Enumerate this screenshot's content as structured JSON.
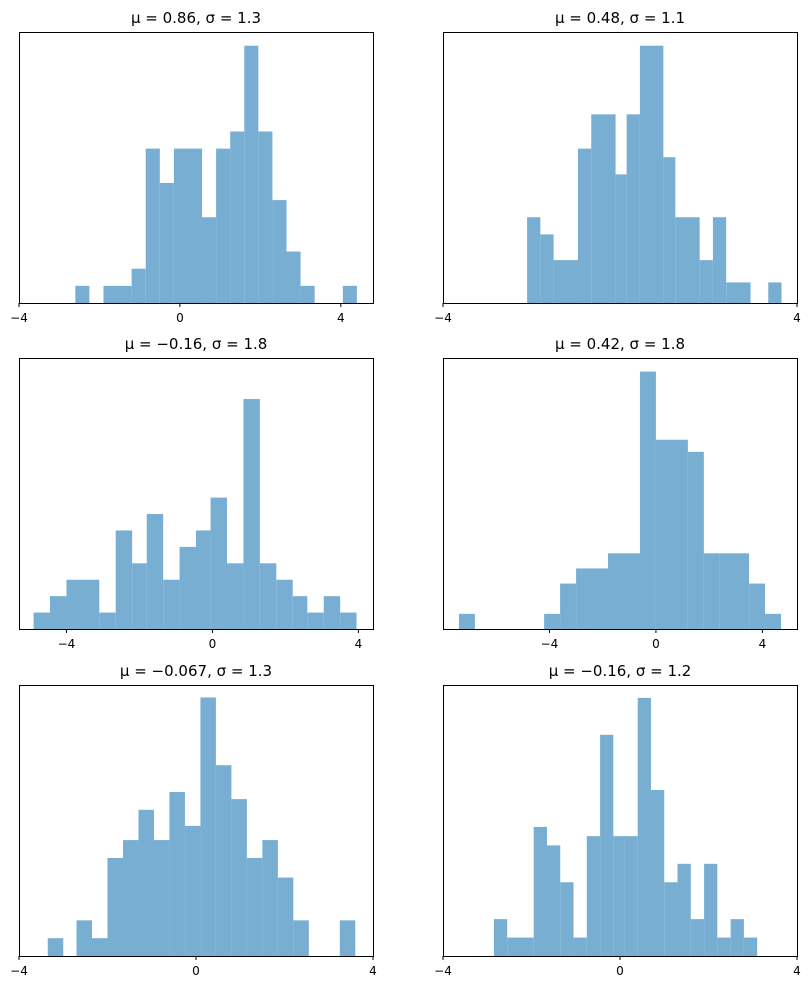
{
  "chart_data": [
    {
      "type": "bar",
      "subtype": "histogram",
      "title": "μ = 0.86,    σ = 1.3",
      "bar_color": "#77aed2",
      "xlim": [
        -4,
        4.8
      ],
      "xticks": [
        -4,
        0,
        4
      ],
      "xtick_labels": [
        "−4",
        "0",
        "4"
      ],
      "yticks_visible": false,
      "bins": [
        {
          "x0": -2.6,
          "x1": -2.25,
          "count": 1
        },
        {
          "x0": -1.9,
          "x1": -1.2,
          "count": 1
        },
        {
          "x0": -1.2,
          "x1": -0.85,
          "count": 2
        },
        {
          "x0": -0.85,
          "x1": -0.5,
          "count": 9
        },
        {
          "x0": -0.5,
          "x1": -0.15,
          "count": 7
        },
        {
          "x0": -0.15,
          "x1": 0.55,
          "count": 9
        },
        {
          "x0": 0.55,
          "x1": 0.9,
          "count": 5
        },
        {
          "x0": 0.9,
          "x1": 1.25,
          "count": 9
        },
        {
          "x0": 1.25,
          "x1": 1.6,
          "count": 10
        },
        {
          "x0": 1.6,
          "x1": 1.95,
          "count": 15
        },
        {
          "x0": 1.95,
          "x1": 2.3,
          "count": 10
        },
        {
          "x0": 2.3,
          "x1": 2.65,
          "count": 6
        },
        {
          "x0": 2.65,
          "x1": 3.0,
          "count": 3
        },
        {
          "x0": 3.0,
          "x1": 3.35,
          "count": 1
        },
        {
          "x0": 4.05,
          "x1": 4.4,
          "count": 1
        }
      ],
      "ylim": [
        0,
        15.8
      ]
    },
    {
      "type": "bar",
      "subtype": "histogram",
      "title": "μ = 0.48,    σ = 1.1",
      "bar_color": "#77aed2",
      "xlim": [
        -4,
        4
      ],
      "xticks": [
        -4,
        4
      ],
      "xtick_labels": [
        "−4",
        "4"
      ],
      "yticks_visible": false,
      "bins": [
        {
          "x0": -2.1,
          "x1": -1.8,
          "count": 5
        },
        {
          "x0": -1.8,
          "x1": -1.5,
          "count": 4
        },
        {
          "x0": -1.5,
          "x1": -0.95,
          "count": 2.5
        },
        {
          "x0": -0.95,
          "x1": -0.65,
          "count": 9
        },
        {
          "x0": -0.65,
          "x1": -0.1,
          "count": 11
        },
        {
          "x0": -0.1,
          "x1": 0.15,
          "count": 7.5
        },
        {
          "x0": 0.15,
          "x1": 0.45,
          "count": 11
        },
        {
          "x0": 0.45,
          "x1": 0.98,
          "count": 15
        },
        {
          "x0": 0.98,
          "x1": 1.25,
          "count": 8.5
        },
        {
          "x0": 1.25,
          "x1": 1.8,
          "count": 5
        },
        {
          "x0": 1.8,
          "x1": 2.1,
          "count": 2.5
        },
        {
          "x0": 2.1,
          "x1": 2.4,
          "count": 5
        },
        {
          "x0": 2.4,
          "x1": 2.95,
          "count": 1.2
        },
        {
          "x0": 3.35,
          "x1": 3.65,
          "count": 1.2
        }
      ],
      "ylim": [
        0,
        15.8
      ]
    },
    {
      "type": "bar",
      "subtype": "histogram",
      "title": "μ = −0.16,    σ = 1.8",
      "bar_color": "#77aed2",
      "xlim": [
        -5.3,
        4.4
      ],
      "xticks": [
        -4,
        0,
        4
      ],
      "xtick_labels": [
        "−4",
        "0",
        "4"
      ],
      "yticks_visible": false,
      "bins": [
        {
          "x0": -4.9,
          "x1": -4.45,
          "count": 1
        },
        {
          "x0": -4.45,
          "x1": -4.0,
          "count": 2
        },
        {
          "x0": -4.0,
          "x1": -3.1,
          "count": 3
        },
        {
          "x0": -3.1,
          "x1": -2.65,
          "count": 1
        },
        {
          "x0": -2.65,
          "x1": -2.2,
          "count": 6
        },
        {
          "x0": -2.2,
          "x1": -1.8,
          "count": 4
        },
        {
          "x0": -1.8,
          "x1": -1.35,
          "count": 7
        },
        {
          "x0": -1.35,
          "x1": -0.9,
          "count": 3
        },
        {
          "x0": -0.9,
          "x1": -0.45,
          "count": 5
        },
        {
          "x0": -0.45,
          "x1": -0.05,
          "count": 6
        },
        {
          "x0": -0.05,
          "x1": 0.4,
          "count": 8
        },
        {
          "x0": 0.4,
          "x1": 0.85,
          "count": 4
        },
        {
          "x0": 0.85,
          "x1": 1.3,
          "count": 14
        },
        {
          "x0": 1.3,
          "x1": 1.75,
          "count": 4
        },
        {
          "x0": 1.75,
          "x1": 2.2,
          "count": 3
        },
        {
          "x0": 2.2,
          "x1": 2.6,
          "count": 2
        },
        {
          "x0": 2.6,
          "x1": 3.05,
          "count": 1
        },
        {
          "x0": 3.05,
          "x1": 3.5,
          "count": 2
        },
        {
          "x0": 3.5,
          "x1": 3.95,
          "count": 1
        }
      ],
      "ylim": [
        0,
        16.5
      ]
    },
    {
      "type": "bar",
      "subtype": "histogram",
      "title": "μ = 0.42,    σ = 1.8",
      "bar_color": "#77aed2",
      "xlim": [
        -8.0,
        5.3
      ],
      "xticks": [
        -4,
        0,
        4
      ],
      "xtick_labels": [
        "−4",
        "0",
        "4"
      ],
      "yticks_visible": false,
      "bins": [
        {
          "x0": -7.4,
          "x1": -6.8,
          "count": 1
        },
        {
          "x0": -4.2,
          "x1": -3.6,
          "count": 1
        },
        {
          "x0": -3.6,
          "x1": -3.0,
          "count": 3
        },
        {
          "x0": -3.0,
          "x1": -1.8,
          "count": 4
        },
        {
          "x0": -1.8,
          "x1": -0.6,
          "count": 5
        },
        {
          "x0": -0.6,
          "x1": 0.0,
          "count": 17
        },
        {
          "x0": 0.0,
          "x1": 1.2,
          "count": 12.5
        },
        {
          "x0": 1.2,
          "x1": 1.8,
          "count": 11.7
        },
        {
          "x0": 1.8,
          "x1": 2.4,
          "count": 5
        },
        {
          "x0": 2.4,
          "x1": 3.5,
          "count": 5
        },
        {
          "x0": 3.5,
          "x1": 4.1,
          "count": 3
        },
        {
          "x0": 4.1,
          "x1": 4.7,
          "count": 1
        }
      ],
      "ylim": [
        0,
        17.9
      ]
    },
    {
      "type": "bar",
      "subtype": "histogram",
      "title": "μ = −0.067,    σ = 1.3",
      "bar_color": "#77aed2",
      "xlim": [
        -4,
        4
      ],
      "xticks": [
        -4,
        0,
        4
      ],
      "xtick_labels": [
        "−4",
        "0",
        "4"
      ],
      "yticks_visible": false,
      "bins": [
        {
          "x0": -3.35,
          "x1": -3.0,
          "count": 1
        },
        {
          "x0": -2.7,
          "x1": -2.35,
          "count": 2
        },
        {
          "x0": -2.35,
          "x1": -2.0,
          "count": 1
        },
        {
          "x0": -2.0,
          "x1": -1.65,
          "count": 5.5
        },
        {
          "x0": -1.65,
          "x1": -1.3,
          "count": 6.5
        },
        {
          "x0": -1.3,
          "x1": -0.95,
          "count": 8.2
        },
        {
          "x0": -0.95,
          "x1": -0.6,
          "count": 6.5
        },
        {
          "x0": -0.6,
          "x1": -0.25,
          "count": 9.2
        },
        {
          "x0": -0.25,
          "x1": 0.1,
          "count": 7.3
        },
        {
          "x0": 0.1,
          "x1": 0.45,
          "count": 14.5
        },
        {
          "x0": 0.45,
          "x1": 0.8,
          "count": 10.7
        },
        {
          "x0": 0.8,
          "x1": 1.15,
          "count": 8.8
        },
        {
          "x0": 1.15,
          "x1": 1.5,
          "count": 5.5
        },
        {
          "x0": 1.5,
          "x1": 1.85,
          "count": 6.5
        },
        {
          "x0": 1.85,
          "x1": 2.2,
          "count": 4.4
        },
        {
          "x0": 2.2,
          "x1": 2.55,
          "count": 2
        },
        {
          "x0": 3.25,
          "x1": 3.6,
          "count": 2
        }
      ],
      "ylim": [
        0,
        15.2
      ]
    },
    {
      "type": "bar",
      "subtype": "histogram",
      "title": "μ = −0.16,    σ = 1.2",
      "bar_color": "#77aed2",
      "xlim": [
        -4,
        4
      ],
      "xticks": [
        -4,
        0,
        4
      ],
      "xtick_labels": [
        "−4",
        "0",
        "4"
      ],
      "yticks_visible": false,
      "bins": [
        {
          "x0": -2.85,
          "x1": -2.55,
          "count": 2
        },
        {
          "x0": -2.55,
          "x1": -1.95,
          "count": 1
        },
        {
          "x0": -1.95,
          "x1": -1.65,
          "count": 7
        },
        {
          "x0": -1.65,
          "x1": -1.35,
          "count": 6
        },
        {
          "x0": -1.35,
          "x1": -1.05,
          "count": 4
        },
        {
          "x0": -1.05,
          "x1": -0.75,
          "count": 1
        },
        {
          "x0": -0.75,
          "x1": -0.45,
          "count": 6.5
        },
        {
          "x0": -0.45,
          "x1": -0.15,
          "count": 12
        },
        {
          "x0": -0.15,
          "x1": 0.1,
          "count": 6.5
        },
        {
          "x0": 0.1,
          "x1": 0.4,
          "count": 6.5
        },
        {
          "x0": 0.4,
          "x1": 0.7,
          "count": 14
        },
        {
          "x0": 0.7,
          "x1": 1.0,
          "count": 9
        },
        {
          "x0": 1.0,
          "x1": 1.3,
          "count": 4
        },
        {
          "x0": 1.3,
          "x1": 1.6,
          "count": 5
        },
        {
          "x0": 1.6,
          "x1": 1.9,
          "count": 2
        },
        {
          "x0": 1.9,
          "x1": 2.2,
          "count": 5
        },
        {
          "x0": 2.2,
          "x1": 2.5,
          "count": 1
        },
        {
          "x0": 2.5,
          "x1": 2.8,
          "count": 2
        },
        {
          "x0": 2.8,
          "x1": 3.1,
          "count": 1
        }
      ],
      "ylim": [
        0,
        14.7
      ]
    }
  ]
}
